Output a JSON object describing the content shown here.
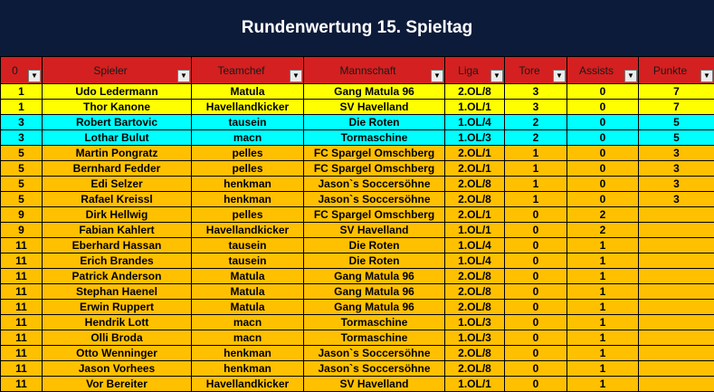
{
  "title": "Rundenwertung 15. Spieltag",
  "colors": {
    "banner": "#0d1b3a",
    "header": "#d42020",
    "row_yellow": "#ffff00",
    "row_cyan": "#00ffff",
    "row_orange": "#ffc000"
  },
  "columns": [
    "0",
    "Spieler",
    "Teamchef",
    "Mannschaft",
    "Liga",
    "Tore",
    "Assists",
    "Punkte"
  ],
  "rows": [
    {
      "rank": "1",
      "player": "Udo Ledermann",
      "chef": "Matula",
      "team": "Gang Matula 96",
      "league": "2.OL/8",
      "goals": "3",
      "assists": "0",
      "points": "7",
      "color": "yellow"
    },
    {
      "rank": "1",
      "player": "Thor Kanone",
      "chef": "Havellandkicker",
      "team": "SV Havelland",
      "league": "1.OL/1",
      "goals": "3",
      "assists": "0",
      "points": "7",
      "color": "yellow"
    },
    {
      "rank": "3",
      "player": "Robert Bartovic",
      "chef": "tausein",
      "team": "Die Roten",
      "league": "1.OL/4",
      "goals": "2",
      "assists": "0",
      "points": "5",
      "color": "cyan"
    },
    {
      "rank": "3",
      "player": "Lothar Bulut",
      "chef": "macn",
      "team": "Tormaschine",
      "league": "1.OL/3",
      "goals": "2",
      "assists": "0",
      "points": "5",
      "color": "cyan"
    },
    {
      "rank": "5",
      "player": "Martin Pongratz",
      "chef": "pelles",
      "team": "FC Spargel Omschberg",
      "league": "2.OL/1",
      "goals": "1",
      "assists": "0",
      "points": "3",
      "color": "orange"
    },
    {
      "rank": "5",
      "player": "Bernhard Fedder",
      "chef": "pelles",
      "team": "FC Spargel Omschberg",
      "league": "2.OL/1",
      "goals": "1",
      "assists": "0",
      "points": "3",
      "color": "orange"
    },
    {
      "rank": "5",
      "player": "Edi Selzer",
      "chef": "henkman",
      "team": "Jason`s Soccersöhne",
      "league": "2.OL/8",
      "goals": "1",
      "assists": "0",
      "points": "3",
      "color": "orange"
    },
    {
      "rank": "5",
      "player": "Rafael Kreissl",
      "chef": "henkman",
      "team": "Jason`s Soccersöhne",
      "league": "2.OL/8",
      "goals": "1",
      "assists": "0",
      "points": "3",
      "color": "orange"
    },
    {
      "rank": "9",
      "player": "Dirk Hellwig",
      "chef": "pelles",
      "team": "FC Spargel Omschberg",
      "league": "2.OL/1",
      "goals": "0",
      "assists": "2",
      "points": "",
      "color": "orange"
    },
    {
      "rank": "9",
      "player": "Fabian Kahlert",
      "chef": "Havellandkicker",
      "team": "SV Havelland",
      "league": "1.OL/1",
      "goals": "0",
      "assists": "2",
      "points": "",
      "color": "orange"
    },
    {
      "rank": "11",
      "player": "Eberhard Hassan",
      "chef": "tausein",
      "team": "Die Roten",
      "league": "1.OL/4",
      "goals": "0",
      "assists": "1",
      "points": "",
      "color": "orange"
    },
    {
      "rank": "11",
      "player": "Erich Brandes",
      "chef": "tausein",
      "team": "Die Roten",
      "league": "1.OL/4",
      "goals": "0",
      "assists": "1",
      "points": "",
      "color": "orange"
    },
    {
      "rank": "11",
      "player": "Patrick Anderson",
      "chef": "Matula",
      "team": "Gang Matula 96",
      "league": "2.OL/8",
      "goals": "0",
      "assists": "1",
      "points": "",
      "color": "orange"
    },
    {
      "rank": "11",
      "player": "Stephan Haenel",
      "chef": "Matula",
      "team": "Gang Matula 96",
      "league": "2.OL/8",
      "goals": "0",
      "assists": "1",
      "points": "",
      "color": "orange"
    },
    {
      "rank": "11",
      "player": "Erwin Ruppert",
      "chef": "Matula",
      "team": "Gang Matula 96",
      "league": "2.OL/8",
      "goals": "0",
      "assists": "1",
      "points": "",
      "color": "orange"
    },
    {
      "rank": "11",
      "player": "Hendrik Lott",
      "chef": "macn",
      "team": "Tormaschine",
      "league": "1.OL/3",
      "goals": "0",
      "assists": "1",
      "points": "",
      "color": "orange"
    },
    {
      "rank": "11",
      "player": "Olli Broda",
      "chef": "macn",
      "team": "Tormaschine",
      "league": "1.OL/3",
      "goals": "0",
      "assists": "1",
      "points": "",
      "color": "orange"
    },
    {
      "rank": "11",
      "player": "Otto Wenninger",
      "chef": "henkman",
      "team": "Jason`s Soccersöhne",
      "league": "2.OL/8",
      "goals": "0",
      "assists": "1",
      "points": "",
      "color": "orange"
    },
    {
      "rank": "11",
      "player": "Jason Vorhees",
      "chef": "henkman",
      "team": "Jason`s Soccersöhne",
      "league": "2.OL/8",
      "goals": "0",
      "assists": "1",
      "points": "",
      "color": "orange"
    },
    {
      "rank": "11",
      "player": "Vor Bereiter",
      "chef": "Havellandkicker",
      "team": "SV Havelland",
      "league": "1.OL/1",
      "goals": "0",
      "assists": "1",
      "points": "",
      "color": "orange"
    }
  ]
}
